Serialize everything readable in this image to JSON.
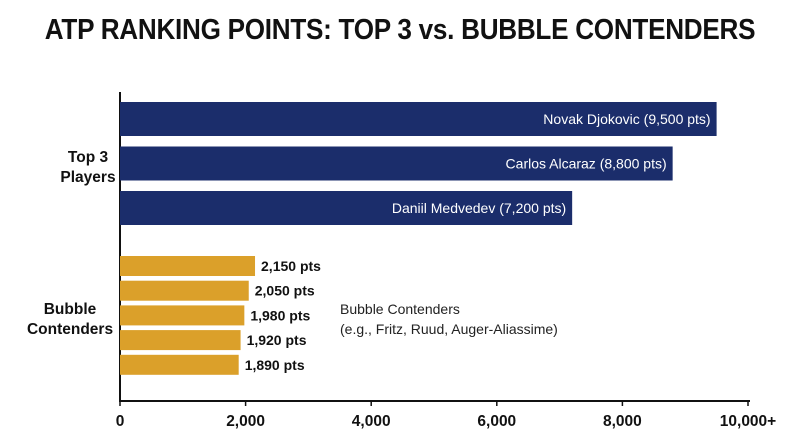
{
  "chart_data": {
    "type": "bar",
    "orientation": "horizontal",
    "title": "ATP RANKING POINTS: TOP 3 vs. BUBBLE CONTENDERS",
    "xlim": [
      0,
      10000
    ],
    "x_ticks": [
      {
        "value": 0,
        "label": "0"
      },
      {
        "value": 2000,
        "label": "2,000"
      },
      {
        "value": 4000,
        "label": "4,000"
      },
      {
        "value": 6000,
        "label": "6,000"
      },
      {
        "value": 8000,
        "label": "8,000"
      },
      {
        "value": 10000,
        "label": "10,000+"
      }
    ],
    "grid": false,
    "groups": [
      {
        "label_lines": [
          "Top 3",
          "Players"
        ],
        "color": "#1b2d6b",
        "label_position": "inside",
        "bars": [
          {
            "value": 9500,
            "label": "Novak Djokovic (9,500 pts)"
          },
          {
            "value": 8800,
            "label": "Carlos Alcaraz (8,800 pts)"
          },
          {
            "value": 7200,
            "label": "Daniil Medvedev (7,200 pts)"
          }
        ]
      },
      {
        "label_lines": [
          "Bubble",
          "Contenders"
        ],
        "color": "#dba02a",
        "label_position": "outside",
        "bars": [
          {
            "value": 2150,
            "label": "2,150 pts"
          },
          {
            "value": 2050,
            "label": "2,050 pts"
          },
          {
            "value": 1980,
            "label": "1,980 pts"
          },
          {
            "value": 1920,
            "label": "1,920 pts"
          },
          {
            "value": 1890,
            "label": "1,890 pts"
          }
        ],
        "annotation_lines": [
          "Bubble Contenders",
          "(e.g., Fritz, Ruud, Auger-Aliassime)"
        ]
      }
    ]
  }
}
